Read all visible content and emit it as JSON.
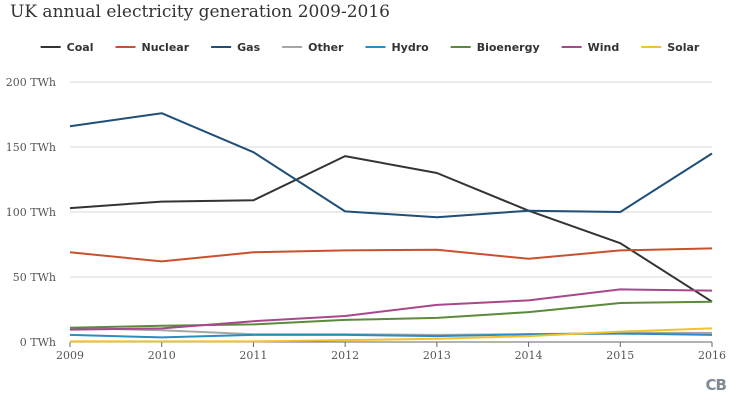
{
  "title": "UK annual electricity generation 2009-2016",
  "logo_text": "CB",
  "chart_data": {
    "type": "line",
    "title": "UK annual electricity generation 2009-2016",
    "xlabel": "",
    "ylabel": "",
    "x": [
      2009,
      2010,
      2011,
      2012,
      2013,
      2014,
      2015,
      2016
    ],
    "x_tick_labels": [
      "2009",
      "2010",
      "2011",
      "2012",
      "2013",
      "2014",
      "2015",
      "2016"
    ],
    "ylim": [
      0,
      200
    ],
    "y_ticks": [
      0,
      50,
      100,
      150,
      200
    ],
    "y_tick_labels": [
      "0 TWh",
      "50 TWh",
      "100 TWh",
      "150 TWh",
      "200 TWh"
    ],
    "grid": "horizontal",
    "legend_position": "top",
    "series": [
      {
        "name": "Coal",
        "color": "#333333",
        "values": [
          103,
          108,
          109,
          143,
          130,
          101,
          76,
          31
        ]
      },
      {
        "name": "Nuclear",
        "color": "#c8502e",
        "values": [
          69,
          62,
          69,
          70.5,
          71,
          64,
          70.5,
          72
        ]
      },
      {
        "name": "Gas",
        "color": "#1f4e79",
        "values": [
          166,
          176,
          146,
          100.5,
          96,
          101,
          100,
          145
        ]
      },
      {
        "name": "Other",
        "color": "#a6a6a6",
        "values": [
          11,
          9,
          6,
          6,
          5.5,
          6,
          7,
          7
        ]
      },
      {
        "name": "Hydro",
        "color": "#2b8cc4",
        "values": [
          5.5,
          3.5,
          5.5,
          5.5,
          4.5,
          6,
          6.5,
          5.5
        ]
      },
      {
        "name": "Bioenergy",
        "color": "#5b8a3c",
        "values": [
          11,
          12.5,
          13.5,
          17,
          18.5,
          23,
          30,
          31
        ]
      },
      {
        "name": "Wind",
        "color": "#a8478c",
        "values": [
          9.5,
          10.5,
          16,
          20,
          28.5,
          32,
          40.5,
          39.5
        ]
      },
      {
        "name": "Solar",
        "color": "#f2c12e",
        "values": [
          0.5,
          0.5,
          0.5,
          1.5,
          2.5,
          4.5,
          8,
          10.5
        ]
      }
    ]
  }
}
